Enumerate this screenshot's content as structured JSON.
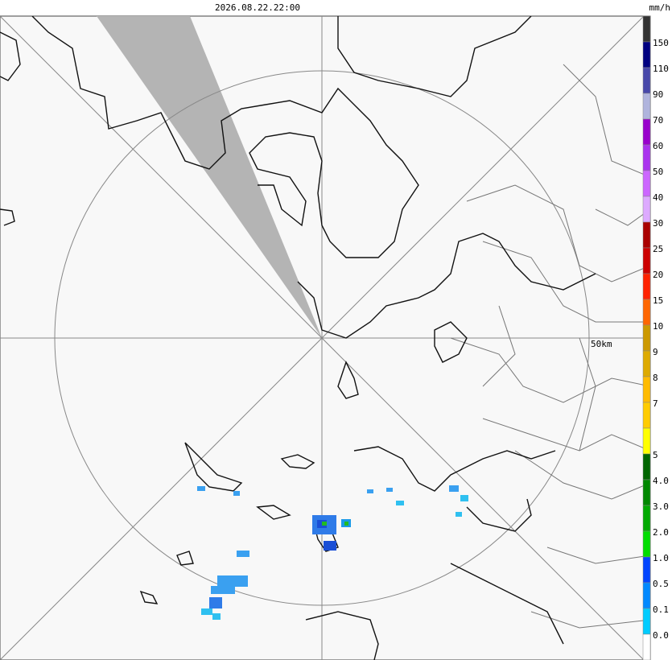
{
  "header": {
    "timestamp": "2026.08.22.22:00",
    "unit": "mm/h"
  },
  "map": {
    "range_label": "50km"
  },
  "legend": {
    "labels": [
      "150",
      "110",
      "90",
      "70",
      "60",
      "50",
      "40",
      "30",
      "25",
      "20",
      "15",
      "10",
      "9",
      "8",
      "7",
      "5",
      "4.0",
      "3.0",
      "2.0",
      "1.0",
      "0.5",
      "0.1",
      "0.0"
    ]
  }
}
